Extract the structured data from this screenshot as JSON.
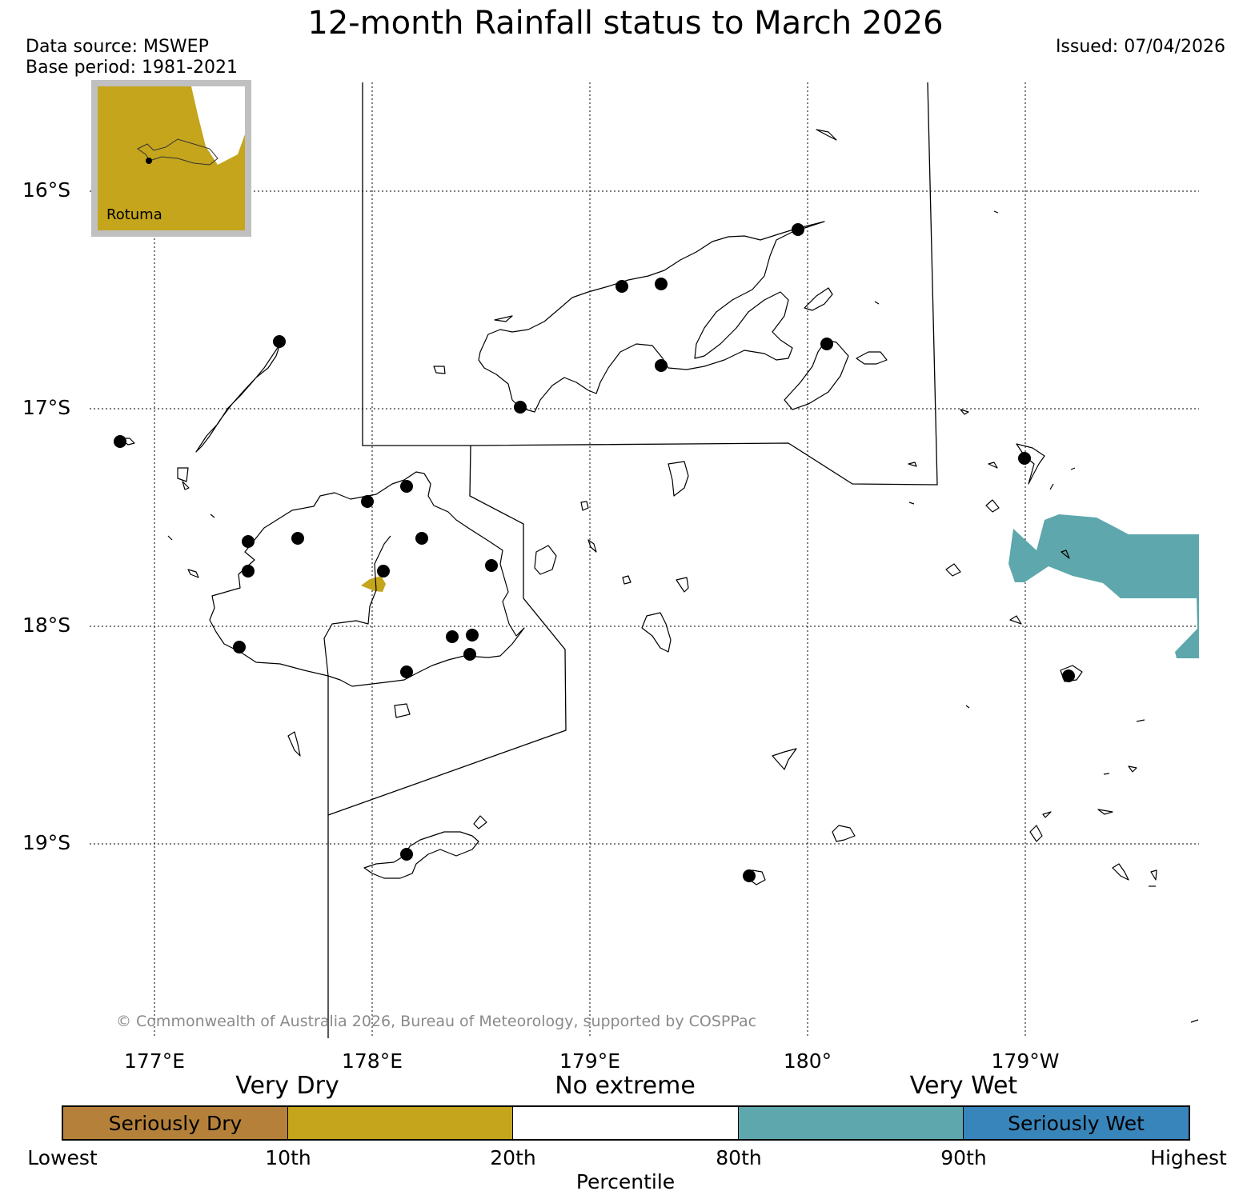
{
  "title": "12-month Rainfall status to March 2026",
  "data_source": "Data source: MSWEP",
  "base_period": "Base period: 1981-2021",
  "issued": "Issued: 07/04/2026",
  "copyright": "© Commonwealth of Australia 2026, Bureau of Meteorology, supported by COSPPac",
  "inset": {
    "label": "Rotuma"
  },
  "latitude_labels": [
    "16°S",
    "17°S",
    "18°S",
    "19°S"
  ],
  "longitude_labels": [
    "177°E",
    "178°E",
    "179°E",
    "180°",
    "179°W"
  ],
  "legend": {
    "headings": [
      "Very Dry",
      "No extreme",
      "Very Wet"
    ],
    "boxes": [
      {
        "label": "Seriously Dry",
        "color": "#b5813a"
      },
      {
        "label": "",
        "color": "#c4a51c"
      },
      {
        "label": "",
        "color": "#ffffff"
      },
      {
        "label": "",
        "color": "#5ea8ad"
      },
      {
        "label": "Seriously Wet",
        "color": "#3885bb"
      }
    ],
    "ticks": [
      "Lowest",
      "10th",
      "20th",
      "80th",
      "90th",
      "Highest"
    ],
    "axis_label": "Percentile"
  },
  "colors": {
    "very_dry": "#c4a51c",
    "very_wet": "#5ea8ad",
    "station_marker": "#000000"
  }
}
